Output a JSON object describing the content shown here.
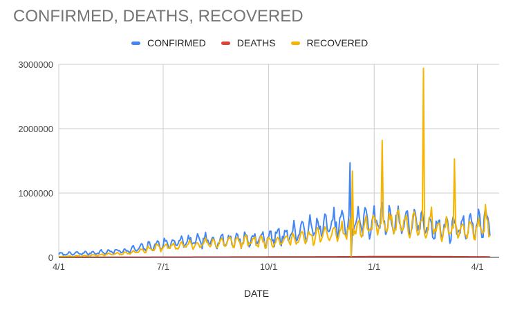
{
  "chart_data": {
    "type": "line",
    "title": "CONFIRMED, DEATHS, RECOVERED",
    "xlabel": "DATE",
    "ylabel": "",
    "x_range": [
      "2020-04-01",
      "2021-04-20"
    ],
    "ylim": [
      0,
      3000000
    ],
    "y_ticks": [
      0,
      1000000,
      2000000,
      3000000
    ],
    "y_tick_labels": [
      "0",
      "1000000",
      "2000000",
      "3000000"
    ],
    "x_ticks": [
      "2020-04-01",
      "2020-07-01",
      "2020-10-01",
      "2021-01-01",
      "2021-04-01"
    ],
    "x_tick_labels": [
      "4/1",
      "7/1",
      "10/1",
      "1/1",
      "4/1"
    ],
    "legend_position": "top",
    "grid": true,
    "series": [
      {
        "name": "CONFIRMED",
        "color": "#4285F4"
      },
      {
        "name": "DEATHS",
        "color": "#DB4437"
      },
      {
        "name": "RECOVERED",
        "color": "#F4B400"
      }
    ],
    "baseline_keypoints": {
      "CONFIRMED": [
        [
          "2020-04-01",
          50000
        ],
        [
          "2020-05-01",
          70000
        ],
        [
          "2020-06-01",
          110000
        ],
        [
          "2020-06-25",
          190000
        ],
        [
          "2020-07-10",
          230000
        ],
        [
          "2020-08-01",
          250000
        ],
        [
          "2020-09-01",
          270000
        ],
        [
          "2020-10-01",
          300000
        ],
        [
          "2020-11-01",
          420000
        ],
        [
          "2020-12-01",
          520000
        ],
        [
          "2020-12-20",
          560000
        ],
        [
          "2021-01-15",
          580000
        ],
        [
          "2021-02-10",
          520000
        ],
        [
          "2021-03-01",
          450000
        ],
        [
          "2021-04-01",
          500000
        ],
        [
          "2021-04-10",
          550000
        ]
      ],
      "DEATHS": [
        [
          "2020-04-01",
          2000
        ],
        [
          "2020-07-01",
          4000
        ],
        [
          "2020-10-01",
          7000
        ],
        [
          "2020-12-15",
          11000
        ],
        [
          "2021-01-10",
          14000
        ],
        [
          "2021-03-01",
          12000
        ],
        [
          "2021-04-10",
          9000
        ]
      ],
      "RECOVERED": [
        [
          "2020-04-01",
          10000
        ],
        [
          "2020-05-01",
          30000
        ],
        [
          "2020-06-01",
          70000
        ],
        [
          "2020-06-25",
          150000
        ],
        [
          "2020-07-10",
          170000
        ],
        [
          "2020-08-01",
          210000
        ],
        [
          "2020-09-01",
          240000
        ],
        [
          "2020-10-01",
          250000
        ],
        [
          "2020-11-01",
          300000
        ],
        [
          "2020-12-01",
          380000
        ],
        [
          "2020-12-20",
          450000
        ],
        [
          "2021-01-15",
          520000
        ],
        [
          "2021-02-10",
          500000
        ],
        [
          "2021-03-01",
          440000
        ],
        [
          "2021-04-01",
          430000
        ],
        [
          "2021-04-10",
          450000
        ]
      ]
    },
    "noise_fraction": {
      "CONFIRMED": 0.55,
      "DEATHS": 0.0,
      "RECOVERED": 0.45
    },
    "spikes": {
      "CONFIRMED": [
        [
          "2020-12-11",
          1470000
        ],
        [
          "2020-12-12",
          20000
        ]
      ],
      "RECOVERED": [
        [
          "2020-12-12",
          20000
        ],
        [
          "2020-12-13",
          1340000
        ],
        [
          "2021-01-08",
          1820000
        ],
        [
          "2021-02-13",
          2940000
        ],
        [
          "2021-02-20",
          780000
        ],
        [
          "2021-03-12",
          1530000
        ],
        [
          "2021-04-08",
          820000
        ]
      ],
      "DEATHS": []
    }
  }
}
